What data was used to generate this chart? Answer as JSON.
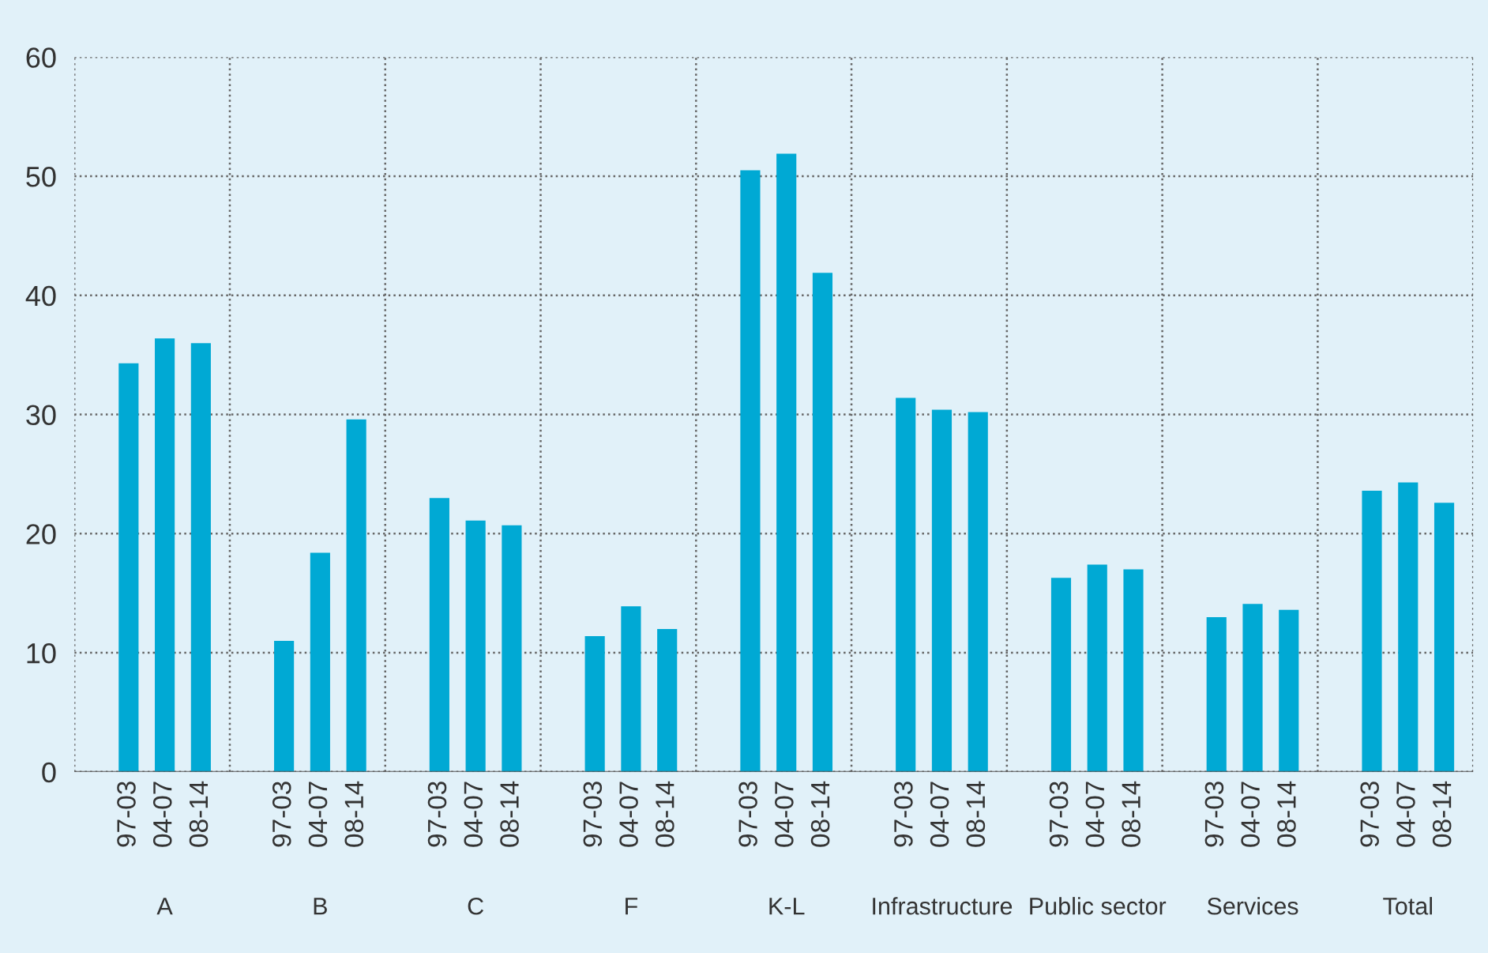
{
  "chart_data": {
    "type": "bar",
    "categories": [
      "A",
      "B",
      "C",
      "F",
      "K-L",
      "Infrastructure",
      "Public sector",
      "Services",
      "Total"
    ],
    "series": [
      {
        "name": "97-03",
        "color": "#00a9d4",
        "values": [
          34.3,
          11.0,
          23.0,
          11.4,
          50.5,
          31.4,
          16.3,
          13.0,
          23.6
        ]
      },
      {
        "name": "04-07",
        "color": "#00a9d4",
        "values": [
          36.4,
          18.4,
          21.1,
          13.9,
          51.9,
          30.4,
          17.4,
          14.1,
          24.3
        ]
      },
      {
        "name": "08-14",
        "color": "#00a9d4",
        "values": [
          36.0,
          29.6,
          20.7,
          12.0,
          41.9,
          30.2,
          17.0,
          13.6,
          22.6
        ]
      }
    ],
    "ylim": [
      0,
      60
    ],
    "yticks": [
      0,
      10,
      20,
      30,
      40,
      50,
      60
    ],
    "grid": true
  }
}
